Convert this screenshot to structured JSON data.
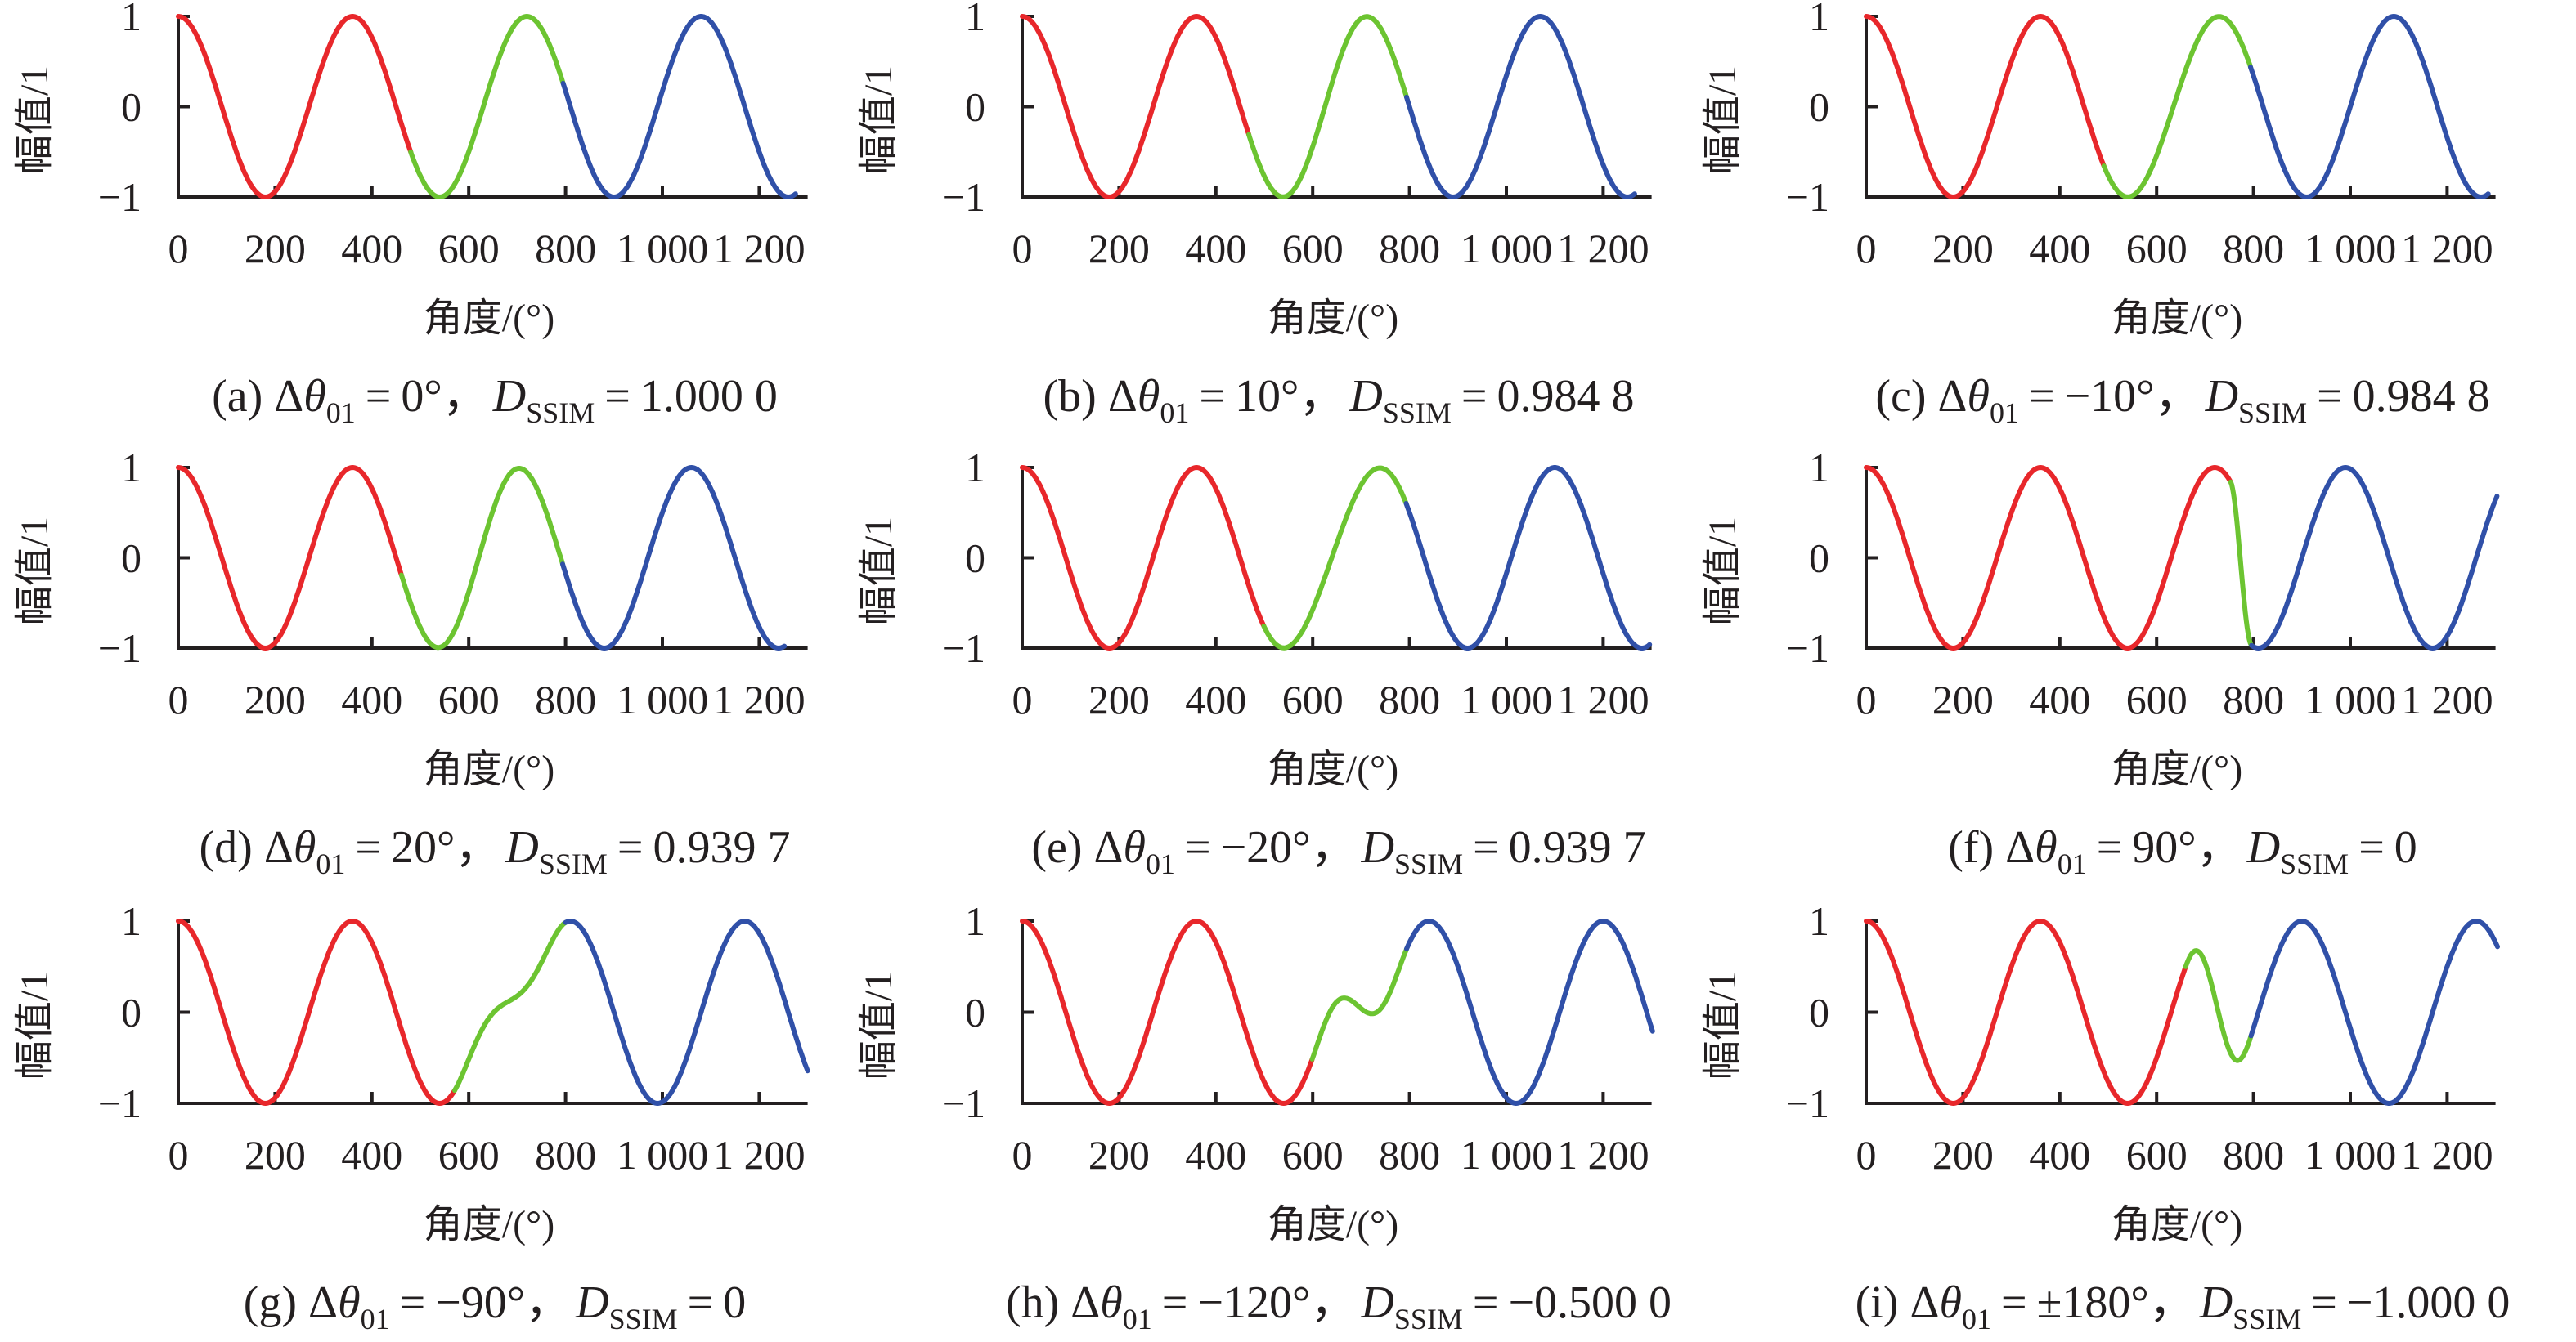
{
  "caption_symbols": {
    "delta": "Δ",
    "theta": "θ",
    "theta_sub": "01",
    "eq": "=",
    "sep": "，",
    "d": "D",
    "d_sub": "SSIM"
  },
  "colors": {
    "reference": "#e8272b",
    "transition": "#6cc431",
    "shifted": "#3050a8",
    "axis": "#231f20"
  },
  "chart_data": [
    {
      "type": "line",
      "caption": {
        "tag": "(a)",
        "dtheta": "0°",
        "dssim": "1.000 0"
      },
      "xlabel": "角度/(°)",
      "ylabel": "幅值/1",
      "xlim": [
        0,
        1300
      ],
      "ylim": [
        -1,
        1
      ],
      "xticks": [
        0,
        200,
        400,
        600,
        800,
        1000,
        1200
      ],
      "xtick_labels": [
        "0",
        "200",
        "400",
        "600",
        "800",
        "1 000",
        "1 200"
      ],
      "yticks": [
        -1,
        0,
        1
      ],
      "ytick_labels": [
        "−1",
        "0",
        "1"
      ],
      "grid": false,
      "phase_shift_deg": 0,
      "series": [
        {
          "color": "#e8272b",
          "x_start": 0,
          "x_end": 480,
          "phase_from_deg": 0,
          "phase_to_deg": 0
        },
        {
          "color": "#6cc431",
          "x_start": 480,
          "x_end": 795,
          "phase_from_deg": 0,
          "phase_to_deg": 0
        },
        {
          "color": "#3050a8",
          "x_start": 795,
          "x_end": 1275,
          "phase_from_deg": 0,
          "phase_to_deg": 0
        }
      ]
    },
    {
      "type": "line",
      "caption": {
        "tag": "(b)",
        "dtheta": "10°",
        "dssim": "0.984 8"
      },
      "xlabel": "角度/(°)",
      "ylabel": "幅值/1",
      "xlim": [
        0,
        1300
      ],
      "ylim": [
        -1,
        1
      ],
      "xticks": [
        0,
        200,
        400,
        600,
        800,
        1000,
        1200
      ],
      "xtick_labels": [
        "0",
        "200",
        "400",
        "600",
        "800",
        "1 000",
        "1 200"
      ],
      "yticks": [
        -1,
        0,
        1
      ],
      "ytick_labels": [
        "−1",
        "0",
        "1"
      ],
      "grid": false,
      "phase_shift_deg": 10,
      "series": [
        {
          "color": "#e8272b",
          "x_start": 0,
          "x_end": 468,
          "phase_from_deg": 0,
          "phase_to_deg": 0
        },
        {
          "color": "#6cc431",
          "x_start": 468,
          "x_end": 794,
          "phase_from_deg": 0,
          "phase_to_deg": 10
        },
        {
          "color": "#3050a8",
          "x_start": 794,
          "x_end": 1265,
          "phase_from_deg": 10,
          "phase_to_deg": 10
        }
      ]
    },
    {
      "type": "line",
      "caption": {
        "tag": "(c)",
        "dtheta": "−10°",
        "dssim": "0.984 8"
      },
      "xlabel": "角度/(°)",
      "ylabel": "幅值/1",
      "xlim": [
        0,
        1300
      ],
      "ylim": [
        -1,
        1
      ],
      "xticks": [
        0,
        200,
        400,
        600,
        800,
        1000,
        1200
      ],
      "xtick_labels": [
        "0",
        "200",
        "400",
        "600",
        "800",
        "1 000",
        "1 200"
      ],
      "yticks": [
        -1,
        0,
        1
      ],
      "ytick_labels": [
        "−1",
        "0",
        "1"
      ],
      "grid": false,
      "phase_shift_deg": -10,
      "series": [
        {
          "color": "#e8272b",
          "x_start": 0,
          "x_end": 491,
          "phase_from_deg": 0,
          "phase_to_deg": 0
        },
        {
          "color": "#6cc431",
          "x_start": 491,
          "x_end": 794,
          "phase_from_deg": 0,
          "phase_to_deg": -10
        },
        {
          "color": "#3050a8",
          "x_start": 794,
          "x_end": 1285,
          "phase_from_deg": -10,
          "phase_to_deg": -10
        }
      ]
    },
    {
      "type": "line",
      "caption": {
        "tag": "(d)",
        "dtheta": "20°",
        "dssim": "0.939 7"
      },
      "xlabel": "角度/(°)",
      "ylabel": "幅值/1",
      "xlim": [
        0,
        1300
      ],
      "ylim": [
        -1,
        1
      ],
      "xticks": [
        0,
        200,
        400,
        600,
        800,
        1000,
        1200
      ],
      "xtick_labels": [
        "0",
        "200",
        "400",
        "600",
        "800",
        "1 000",
        "1 200"
      ],
      "yticks": [
        -1,
        0,
        1
      ],
      "ytick_labels": [
        "−1",
        "0",
        "1"
      ],
      "grid": false,
      "phase_shift_deg": 20,
      "series": [
        {
          "color": "#e8272b",
          "x_start": 0,
          "x_end": 461,
          "phase_from_deg": 0,
          "phase_to_deg": 0
        },
        {
          "color": "#6cc431",
          "x_start": 461,
          "x_end": 794,
          "phase_from_deg": 0,
          "phase_to_deg": 20
        },
        {
          "color": "#3050a8",
          "x_start": 794,
          "x_end": 1252,
          "phase_from_deg": 20,
          "phase_to_deg": 20
        }
      ]
    },
    {
      "type": "line",
      "caption": {
        "tag": "(e)",
        "dtheta": "−20°",
        "dssim": "0.939 7"
      },
      "xlabel": "角度/(°)",
      "ylabel": "幅值/1",
      "xlim": [
        0,
        1300
      ],
      "ylim": [
        -1,
        1
      ],
      "xticks": [
        0,
        200,
        400,
        600,
        800,
        1000,
        1200
      ],
      "xtick_labels": [
        "0",
        "200",
        "400",
        "600",
        "800",
        "1 000",
        "1 200"
      ],
      "yticks": [
        -1,
        0,
        1
      ],
      "ytick_labels": [
        "−1",
        "0",
        "1"
      ],
      "grid": false,
      "phase_shift_deg": -20,
      "series": [
        {
          "color": "#e8272b",
          "x_start": 0,
          "x_end": 499,
          "phase_from_deg": 0,
          "phase_to_deg": 0
        },
        {
          "color": "#6cc431",
          "x_start": 499,
          "x_end": 793,
          "phase_from_deg": 0,
          "phase_to_deg": -20
        },
        {
          "color": "#3050a8",
          "x_start": 793,
          "x_end": 1296,
          "phase_from_deg": -20,
          "phase_to_deg": -20
        }
      ]
    },
    {
      "type": "line",
      "caption": {
        "tag": "(f)",
        "dtheta": "90°",
        "dssim": "0"
      },
      "xlabel": "角度/(°)",
      "ylabel": "幅值/1",
      "xlim": [
        0,
        1300
      ],
      "ylim": [
        -1,
        1
      ],
      "xticks": [
        0,
        200,
        400,
        600,
        800,
        1000,
        1200
      ],
      "xtick_labels": [
        "0",
        "200",
        "400",
        "600",
        "800",
        "1 000",
        "1 200"
      ],
      "yticks": [
        -1,
        0,
        1
      ],
      "ytick_labels": [
        "−1",
        "0",
        "1"
      ],
      "grid": false,
      "phase_shift_deg": 90,
      "series": [
        {
          "color": "#e8272b",
          "x_start": 0,
          "x_end": 753,
          "phase_from_deg": 0,
          "phase_to_deg": 0
        },
        {
          "color": "#6cc431",
          "x_start": 753,
          "x_end": 796,
          "phase_from_deg": 0,
          "phase_to_deg": 90
        },
        {
          "color": "#3050a8",
          "x_start": 796,
          "x_end": 1303,
          "phase_from_deg": 90,
          "phase_to_deg": 90
        }
      ]
    },
    {
      "type": "line",
      "caption": {
        "tag": "(g)",
        "dtheta": "−90°",
        "dssim": "0"
      },
      "xlabel": "角度/(°)",
      "ylabel": "幅值/1",
      "xlim": [
        0,
        1300
      ],
      "ylim": [
        -1,
        1
      ],
      "xticks": [
        0,
        200,
        400,
        600,
        800,
        1000,
        1200
      ],
      "xtick_labels": [
        "0",
        "200",
        "400",
        "600",
        "800",
        "1 000",
        "1 200"
      ],
      "yticks": [
        -1,
        0,
        1
      ],
      "ytick_labels": [
        "−1",
        "0",
        "1"
      ],
      "grid": false,
      "phase_shift_deg": -90,
      "series": [
        {
          "color": "#e8272b",
          "x_start": 0,
          "x_end": 571,
          "phase_from_deg": 0,
          "phase_to_deg": 0
        },
        {
          "color": "#6cc431",
          "x_start": 571,
          "x_end": 800,
          "phase_from_deg": 0,
          "phase_to_deg": -90
        },
        {
          "color": "#3050a8",
          "x_start": 800,
          "x_end": 1300,
          "phase_from_deg": -90,
          "phase_to_deg": -90
        }
      ]
    },
    {
      "type": "line",
      "caption": {
        "tag": "(h)",
        "dtheta": "−120°",
        "dssim": "−0.500 0"
      },
      "xlabel": "角度/(°)",
      "ylabel": "幅值/1",
      "xlim": [
        0,
        1300
      ],
      "ylim": [
        -1,
        1
      ],
      "xticks": [
        0,
        200,
        400,
        600,
        800,
        1000,
        1200
      ],
      "xtick_labels": [
        "0",
        "200",
        "400",
        "600",
        "800",
        "1 000",
        "1 200"
      ],
      "yticks": [
        -1,
        0,
        1
      ],
      "ytick_labels": [
        "−1",
        "0",
        "1"
      ],
      "grid": false,
      "phase_shift_deg": -120,
      "series": [
        {
          "color": "#e8272b",
          "x_start": 0,
          "x_end": 599,
          "phase_from_deg": 0,
          "phase_to_deg": 0
        },
        {
          "color": "#6cc431",
          "x_start": 599,
          "x_end": 794,
          "phase_from_deg": 0,
          "phase_to_deg": -120
        },
        {
          "color": "#3050a8",
          "x_start": 794,
          "x_end": 1302,
          "phase_from_deg": -120,
          "phase_to_deg": -120
        }
      ]
    },
    {
      "type": "line",
      "caption": {
        "tag": "(i)",
        "dtheta": "±180°",
        "dssim": "−1.000 0"
      },
      "xlabel": "角度/(°)",
      "ylabel": "幅值/1",
      "xlim": [
        0,
        1300
      ],
      "ylim": [
        -1,
        1
      ],
      "xticks": [
        0,
        200,
        400,
        600,
        800,
        1000,
        1200
      ],
      "xtick_labels": [
        "0",
        "200",
        "400",
        "600",
        "800",
        "1 000",
        "1 200"
      ],
      "yticks": [
        -1,
        0,
        1
      ],
      "ytick_labels": [
        "−1",
        "0",
        "1"
      ],
      "grid": false,
      "phase_shift_deg": 180,
      "series": [
        {
          "color": "#e8272b",
          "x_start": 0,
          "x_end": 660,
          "phase_from_deg": 0,
          "phase_to_deg": 0
        },
        {
          "color": "#6cc431",
          "x_start": 660,
          "x_end": 795,
          "phase_from_deg": 0,
          "phase_to_deg": 180
        },
        {
          "color": "#3050a8",
          "x_start": 795,
          "x_end": 1304,
          "phase_from_deg": 180,
          "phase_to_deg": 180
        }
      ]
    }
  ]
}
